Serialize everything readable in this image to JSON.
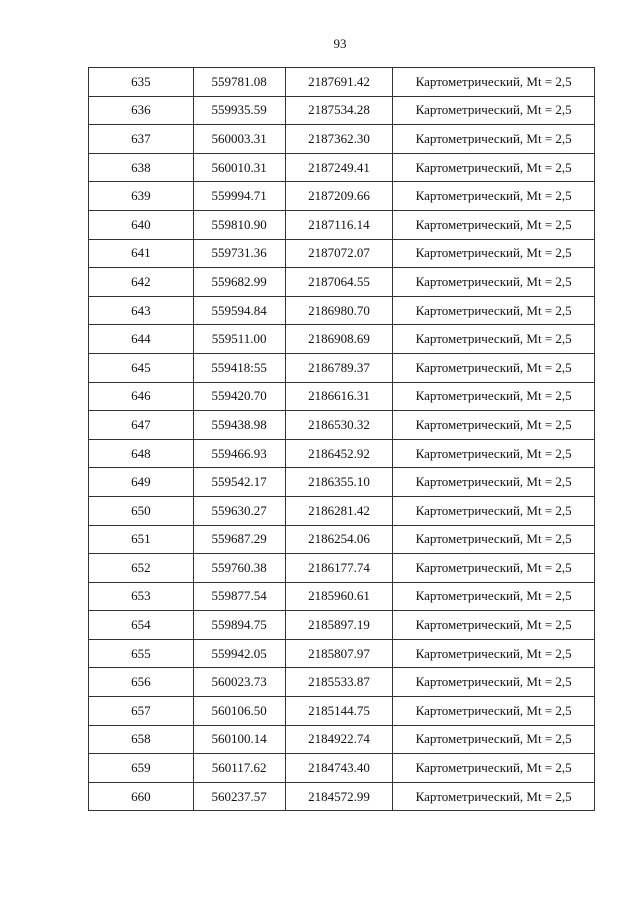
{
  "page_number": "93",
  "rows": [
    [
      "635",
      "559781.08",
      "2187691.42",
      "Картометрический, Mt = 2,5"
    ],
    [
      "636",
      "559935.59",
      "2187534.28",
      "Картометрический, Mt = 2,5"
    ],
    [
      "637",
      "560003.31",
      "2187362.30",
      "Картометрический, Mt = 2,5"
    ],
    [
      "638",
      "560010.31",
      "2187249.41",
      "Картометрический, Mt = 2,5"
    ],
    [
      "639",
      "559994.71",
      "2187209.66",
      "Картометрический, Mt = 2,5"
    ],
    [
      "640",
      "559810.90",
      "2187116.14",
      "Картометрический, Mt = 2,5"
    ],
    [
      "641",
      "559731.36",
      "2187072.07",
      "Картометрический, Mt = 2,5"
    ],
    [
      "642",
      "559682.99",
      "2187064.55",
      "Картометрический, Mt = 2,5"
    ],
    [
      "643",
      "559594.84",
      "2186980.70",
      "Картометрический, Mt = 2,5"
    ],
    [
      "644",
      "559511.00",
      "2186908.69",
      "Картометрический, Mt = 2,5"
    ],
    [
      "645",
      "559418:55",
      "2186789.37",
      "Картометрический, Mt = 2,5"
    ],
    [
      "646",
      "559420.70",
      "2186616.31",
      "Картометрический, Mt = 2,5"
    ],
    [
      "647",
      "559438.98",
      "2186530.32",
      "Картометрический, Mt = 2,5"
    ],
    [
      "648",
      "559466.93",
      "2186452.92",
      "Картометрический, Mt = 2,5"
    ],
    [
      "649",
      "559542.17",
      "2186355.10",
      "Картометрический, Mt = 2,5"
    ],
    [
      "650",
      "559630.27",
      "2186281.42",
      "Картометрический, Mt = 2,5"
    ],
    [
      "651",
      "559687.29",
      "2186254.06",
      "Картометрический, Mt = 2,5"
    ],
    [
      "652",
      "559760.38",
      "2186177.74",
      "Картометрический, Mt = 2,5"
    ],
    [
      "653",
      "559877.54",
      "2185960.61",
      "Картометрический, Mt = 2,5"
    ],
    [
      "654",
      "559894.75",
      "2185897.19",
      "Картометрический, Mt = 2,5"
    ],
    [
      "655",
      "559942.05",
      "2185807.97",
      "Картометрический, Mt = 2,5"
    ],
    [
      "656",
      "560023.73",
      "2185533.87",
      "Картометрический, Mt = 2,5"
    ],
    [
      "657",
      "560106.50",
      "2185144.75",
      "Картометрический, Mt = 2,5"
    ],
    [
      "658",
      "560100.14",
      "2184922.74",
      "Картометрический, Mt = 2,5"
    ],
    [
      "659",
      "560117.62",
      "2184743.40",
      "Картометрический, Mt = 2,5"
    ],
    [
      "660",
      "560237.57",
      "2184572.99",
      "Картометрический, Mt = 2,5"
    ]
  ]
}
